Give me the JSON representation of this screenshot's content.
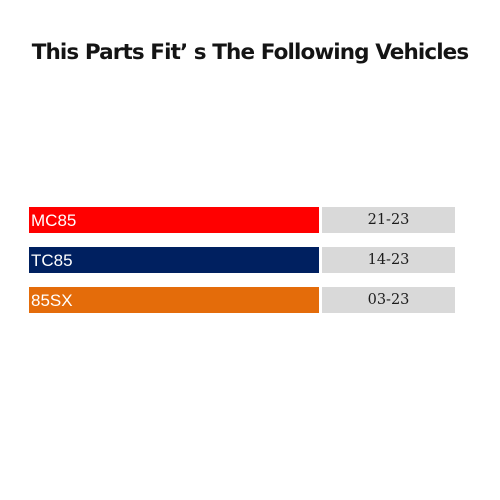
{
  "title": "This Parts Fit’ s The Following Vehicles",
  "vehicles": [
    {
      "model": "MC85",
      "years": "21-23",
      "color": "#ff0000"
    },
    {
      "model": "TC85",
      "years": "14-23",
      "color": "#002060"
    },
    {
      "model": "85SX",
      "years": "03-23",
      "color": "#e46c0a"
    }
  ],
  "year_cell_color": "#d9d9d9"
}
